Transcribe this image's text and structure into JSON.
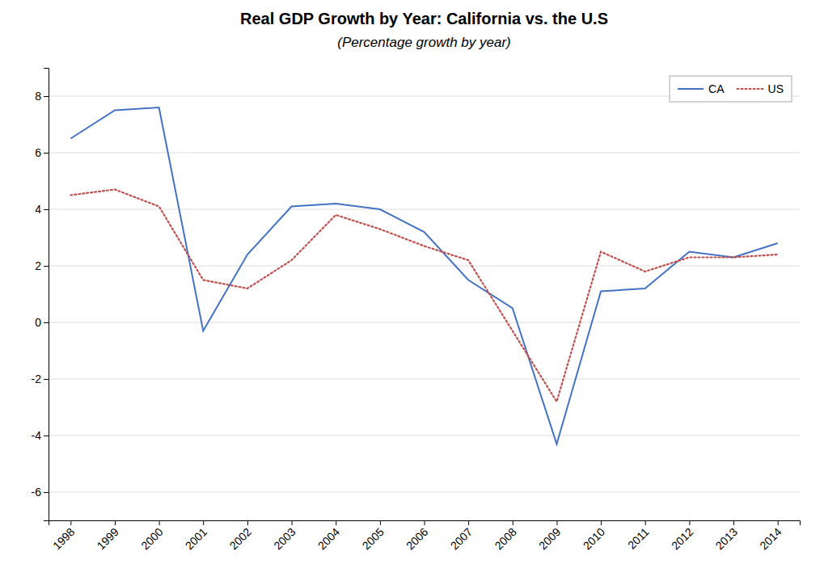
{
  "chart_data": {
    "type": "line",
    "title": "Real GDP Growth by Year: California vs. the U.S",
    "subtitle": "(Percentage growth by year)",
    "x": [
      1998,
      1999,
      2000,
      2001,
      2002,
      2003,
      2004,
      2005,
      2006,
      2007,
      2008,
      2009,
      2010,
      2011,
      2012,
      2013,
      2014
    ],
    "series": [
      {
        "name": "CA",
        "color": "#4472C4",
        "line_style": "solid",
        "values": [
          6.5,
          7.5,
          7.6,
          -0.3,
          2.4,
          4.1,
          4.2,
          4.0,
          3.2,
          1.5,
          0.5,
          -4.3,
          1.1,
          1.2,
          2.5,
          2.3,
          2.8
        ]
      },
      {
        "name": "US",
        "color": "#C0504D",
        "line_style": "dotted",
        "values": [
          4.5,
          4.7,
          4.1,
          1.5,
          1.2,
          2.2,
          3.8,
          3.3,
          2.7,
          2.2,
          -0.3,
          -2.8,
          2.5,
          1.8,
          2.3,
          2.3,
          2.4
        ]
      }
    ],
    "xlim": [
      1997.5,
      2014.5
    ],
    "xticks": [
      1998,
      1999,
      2000,
      2001,
      2002,
      2003,
      2004,
      2005,
      2006,
      2007,
      2008,
      2009,
      2010,
      2011,
      2012,
      2013,
      2014
    ],
    "ylim": [
      -7,
      9
    ],
    "yticks": [
      -6,
      -4,
      -2,
      0,
      2,
      4,
      6,
      8
    ],
    "grid": "y",
    "legend": "upper right"
  }
}
